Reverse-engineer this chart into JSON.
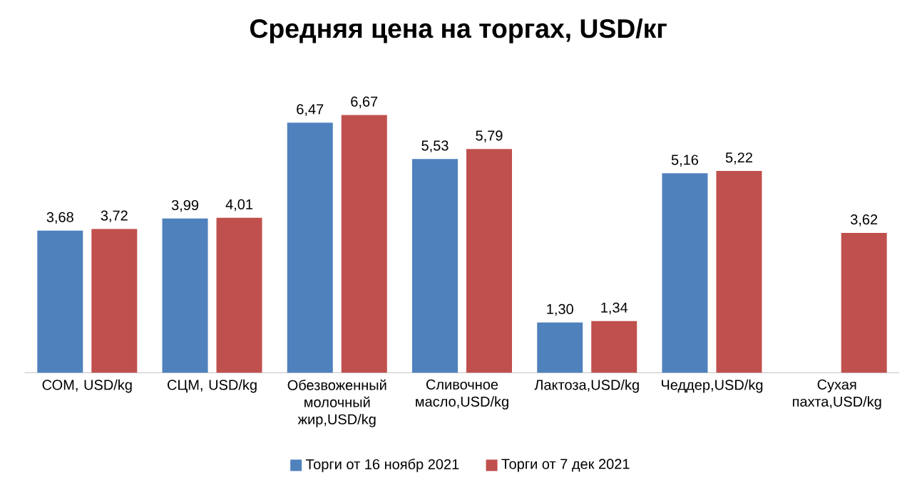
{
  "chart_data": {
    "type": "bar",
    "title": "Средняя цена на торгах, USD/кг",
    "categories": [
      "СОМ, USD/kg",
      "СЦМ, USD/kg",
      "Обезвоженный молочный жир,USD/kg",
      "Сливочное масло,USD/kg",
      "Лактоза,USD/kg",
      "Чеддер,USD/kg",
      "Сухая пахта,USD/kg"
    ],
    "series": [
      {
        "name": "Торги от 16 ноябр 2021",
        "color": "#4f81bd",
        "values": [
          3.68,
          3.99,
          6.47,
          5.53,
          1.3,
          5.16,
          null
        ],
        "value_labels": [
          "3,68",
          "3,99",
          "6,47",
          "5,53",
          "1,30",
          "5,16",
          null
        ]
      },
      {
        "name": "Торги от 7 дек 2021",
        "color": "#c0504d",
        "values": [
          3.72,
          4.01,
          6.67,
          5.79,
          1.34,
          5.22,
          3.62
        ],
        "value_labels": [
          "3,72",
          "4,01",
          "6,67",
          "5,79",
          "1,34",
          "5,22",
          "3,62"
        ]
      }
    ],
    "legend": "bottom"
  }
}
